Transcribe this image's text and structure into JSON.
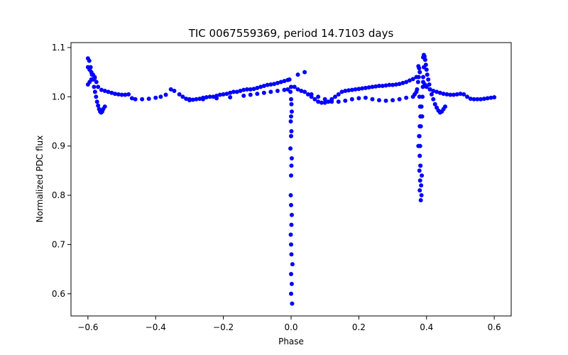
{
  "chart_data": {
    "type": "scatter",
    "title": "TIC 0067559369, period 14.7103 days",
    "xlabel": "Phase",
    "ylabel": "Normalized PDC flux",
    "xlim": [
      -0.65,
      0.65
    ],
    "ylim": [
      0.555,
      1.11
    ],
    "xticks": [
      -0.6,
      -0.4,
      -0.2,
      0.0,
      0.2,
      0.4,
      0.6
    ],
    "xtick_labels": [
      "−0.6",
      "−0.4",
      "−0.2",
      "0.0",
      "0.2",
      "0.4",
      "0.6"
    ],
    "yticks": [
      0.6,
      0.7,
      0.8,
      0.9,
      1.0,
      1.1
    ],
    "ytick_labels": [
      "0.6",
      "0.7",
      "0.8",
      "0.9",
      "1.0",
      "1.1"
    ],
    "grid": false,
    "legend": "none",
    "color": "#0000ff",
    "series": [
      {
        "x": [
          -0.6,
          -0.596,
          -0.592,
          -0.588,
          -0.585,
          -0.582,
          -0.579,
          -0.576,
          -0.573,
          -0.57,
          -0.567,
          -0.564,
          -0.561,
          -0.558,
          -0.555,
          -0.55,
          -0.6,
          -0.595,
          -0.59,
          -0.585,
          -0.58,
          -0.575,
          -0.57,
          -0.56,
          -0.55,
          -0.54,
          -0.53,
          -0.52,
          -0.51,
          -0.5,
          -0.49,
          -0.48,
          -0.6,
          -0.595,
          -0.59,
          -0.585,
          -0.58,
          -0.47,
          -0.46,
          -0.44,
          -0.42,
          -0.4,
          -0.385,
          -0.37,
          -0.355,
          -0.345,
          -0.33,
          -0.32,
          -0.31,
          -0.3,
          -0.29,
          -0.28,
          -0.27,
          -0.26,
          -0.25,
          -0.24,
          -0.23,
          -0.22,
          -0.21,
          -0.2,
          -0.19,
          -0.18,
          -0.17,
          -0.16,
          -0.15,
          -0.14,
          -0.13,
          -0.12,
          -0.11,
          -0.1,
          -0.09,
          -0.08,
          -0.07,
          -0.06,
          -0.05,
          -0.04,
          -0.03,
          -0.02,
          -0.01,
          -0.005,
          -0.3,
          -0.26,
          -0.22,
          -0.18,
          -0.14,
          -0.12,
          -0.1,
          -0.08,
          -0.06,
          -0.04,
          -0.02,
          -0.01,
          0.0,
          -0.002,
          0.0,
          0.001,
          0.002,
          0.0,
          -0.001,
          0.001,
          0.0,
          -0.002,
          0.002,
          0.001,
          0.0,
          -0.001,
          0.0,
          0.002,
          0.001,
          -0.001,
          0.0,
          0.001,
          0.0,
          0.0,
          0.003,
          0.002,
          0.004,
          0.01,
          0.02,
          0.03,
          0.04,
          0.05,
          0.06,
          0.07,
          0.08,
          0.09,
          0.1,
          0.11,
          0.12,
          0.13,
          0.14,
          0.15,
          0.16,
          0.17,
          0.18,
          0.19,
          0.2,
          0.21,
          0.22,
          0.23,
          0.24,
          0.25,
          0.26,
          0.27,
          0.28,
          0.29,
          0.3,
          0.31,
          0.32,
          0.33,
          0.34,
          0.35,
          0.36,
          0.37,
          0.02,
          0.04,
          0.06,
          0.08,
          0.1,
          0.12,
          0.14,
          0.16,
          0.18,
          0.2,
          0.22,
          0.24,
          0.26,
          0.28,
          0.3,
          0.32,
          0.34,
          0.36,
          0.365,
          0.37,
          0.372,
          0.375,
          0.377,
          0.38,
          0.378,
          0.376,
          0.379,
          0.381,
          0.382,
          0.38,
          0.378,
          0.376,
          0.38,
          0.382,
          0.379,
          0.381,
          0.38,
          0.383,
          0.385,
          0.384,
          0.386,
          0.382,
          0.38,
          0.381,
          0.379,
          0.383,
          0.387,
          0.385,
          0.388,
          0.389,
          0.39,
          0.392,
          0.39,
          0.392,
          0.394,
          0.396,
          0.398,
          0.4,
          0.402,
          0.405,
          0.408,
          0.41,
          0.415,
          0.42,
          0.425,
          0.43,
          0.435,
          0.44,
          0.445,
          0.45,
          0.455,
          0.39,
          0.395,
          0.4,
          0.41,
          0.42,
          0.43,
          0.44,
          0.45,
          0.46,
          0.47,
          0.48,
          0.49,
          0.5,
          0.51,
          0.52,
          0.53,
          0.54,
          0.55,
          0.56,
          0.57,
          0.58,
          0.59,
          0.6
        ],
        "y": [
          1.078,
          1.073,
          1.06,
          1.045,
          1.035,
          1.02,
          1.01,
          1.0,
          0.99,
          0.982,
          0.975,
          0.97,
          0.968,
          0.97,
          0.975,
          0.98,
          1.025,
          1.03,
          1.035,
          1.036,
          1.038,
          1.03,
          1.02,
          1.014,
          1.012,
          1.01,
          1.008,
          1.006,
          1.005,
          1.004,
          1.004,
          1.005,
          1.06,
          1.055,
          1.05,
          1.045,
          1.04,
          0.997,
          0.995,
          0.995,
          0.996,
          0.998,
          1.0,
          1.004,
          1.015,
          1.012,
          1.005,
          1.0,
          0.996,
          0.995,
          0.994,
          0.995,
          0.996,
          0.998,
          0.999,
          1.0,
          1.0,
          1.002,
          1.004,
          1.005,
          1.006,
          1.008,
          1.01,
          1.01,
          1.012,
          1.014,
          1.015,
          1.015,
          1.016,
          1.018,
          1.02,
          1.022,
          1.024,
          1.025,
          1.026,
          1.028,
          1.03,
          1.032,
          1.034,
          1.035,
          0.993,
          0.995,
          0.997,
          0.999,
          1.002,
          1.004,
          1.006,
          1.008,
          1.01,
          1.012,
          1.014,
          1.015,
          1.02,
          1.01,
          0.995,
          0.985,
          0.97,
          0.96,
          0.95,
          0.93,
          0.92,
          0.895,
          0.875,
          0.86,
          0.84,
          0.8,
          0.78,
          0.76,
          0.74,
          0.72,
          0.7,
          0.68,
          0.64,
          0.6,
          0.58,
          0.62,
          0.66,
          1.02,
          1.015,
          1.012,
          1.01,
          1.005,
          1.0,
          0.995,
          0.99,
          0.988,
          0.988,
          0.99,
          0.995,
          1.0,
          1.005,
          1.01,
          1.012,
          1.013,
          1.014,
          1.015,
          1.016,
          1.017,
          1.018,
          1.019,
          1.02,
          1.021,
          1.022,
          1.022,
          1.023,
          1.024,
          1.024,
          1.025,
          1.026,
          1.028,
          1.03,
          1.033,
          1.036,
          1.04,
          1.045,
          1.05,
          1.005,
          1.0,
          0.995,
          0.99,
          0.99,
          0.992,
          0.995,
          0.997,
          0.998,
          0.995,
          0.993,
          0.992,
          0.993,
          0.995,
          0.998,
          1.0,
          1.005,
          1.01,
          1.015,
          1.03,
          1.04,
          1.05,
          1.058,
          1.062,
          1.0,
          0.98,
          0.96,
          0.94,
          0.92,
          0.9,
          0.88,
          0.86,
          0.85,
          0.83,
          0.81,
          0.79,
          0.8,
          0.82,
          0.84,
          0.86,
          0.88,
          0.9,
          0.92,
          0.94,
          0.96,
          0.98,
          1.0,
          1.02,
          1.04,
          1.06,
          1.08,
          1.085,
          1.082,
          1.075,
          1.065,
          1.055,
          1.045,
          1.035,
          1.025,
          1.015,
          1.005,
          0.995,
          0.985,
          0.978,
          0.972,
          0.968,
          0.97,
          0.975,
          0.98,
          1.03,
          1.025,
          1.02,
          1.015,
          1.012,
          1.01,
          1.008,
          1.006,
          1.005,
          1.004,
          1.004,
          1.005,
          1.006,
          1.005,
          1.0,
          0.996,
          0.995,
          0.995,
          0.995,
          0.996,
          0.997,
          0.998,
          0.999
        ]
      }
    ]
  }
}
